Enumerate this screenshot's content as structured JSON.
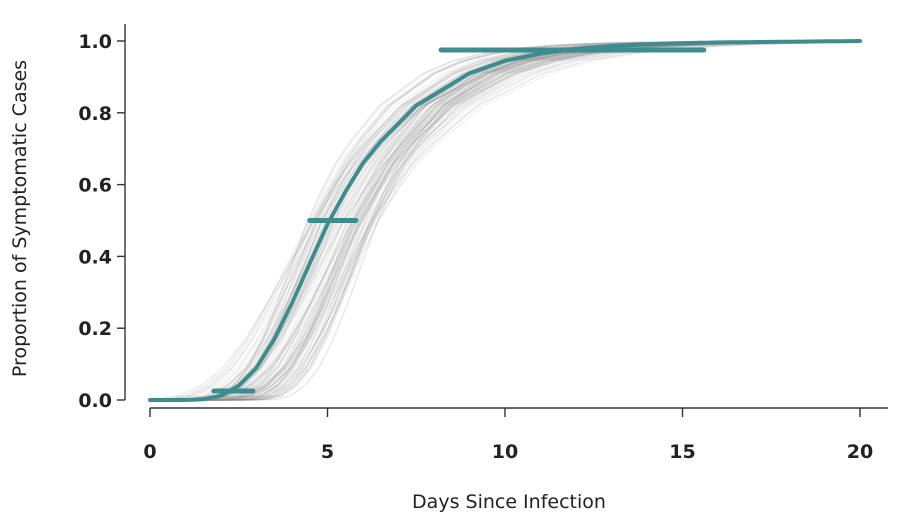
{
  "chart_data": {
    "type": "line",
    "xlabel": "Days Since Infection",
    "ylabel": "Proportion of Symptomatic Cases",
    "xlim": [
      0,
      20
    ],
    "ylim": [
      0,
      1
    ],
    "x_ticks": [
      0,
      5,
      10,
      15,
      20
    ],
    "x_tick_labels": [
      "0",
      "5",
      "10",
      "15",
      "20"
    ],
    "y_ticks": [
      0,
      0.2,
      0.4,
      0.6,
      0.8,
      1.0
    ],
    "y_tick_labels": [
      "0.0",
      "0.2",
      "0.4",
      "0.6",
      "0.8",
      "1.0"
    ],
    "grid": false,
    "colors": {
      "main": "#3d8c8e",
      "simulations": "#8a8a8a"
    },
    "series": [
      {
        "x": [
          0,
          1,
          1.5,
          2,
          2.5,
          3,
          3.5,
          4,
          4.5,
          5,
          5.5,
          6,
          6.5,
          7,
          7.5,
          8,
          9,
          10,
          11,
          12,
          13,
          14,
          15,
          16,
          17,
          18,
          19,
          20
        ],
        "values": [
          0,
          0,
          0.002,
          0.012,
          0.04,
          0.09,
          0.17,
          0.27,
          0.38,
          0.49,
          0.58,
          0.66,
          0.72,
          0.77,
          0.82,
          0.85,
          0.91,
          0.945,
          0.965,
          0.978,
          0.986,
          0.991,
          0.994,
          0.996,
          0.997,
          0.998,
          0.999,
          1.0
        ]
      }
    ],
    "interval_bars": [
      {
        "y": 0.025,
        "x_low": 1.8,
        "x_high": 2.9
      },
      {
        "y": 0.5,
        "x_low": 4.5,
        "x_high": 5.8
      },
      {
        "y": 0.975,
        "x_low": 8.2,
        "x_high": 15.6
      }
    ],
    "simulation_band": {
      "median_shift_range": [
        -0.6,
        1.4
      ],
      "shape_range": [
        0.8,
        1.25
      ],
      "count": 120
    }
  }
}
